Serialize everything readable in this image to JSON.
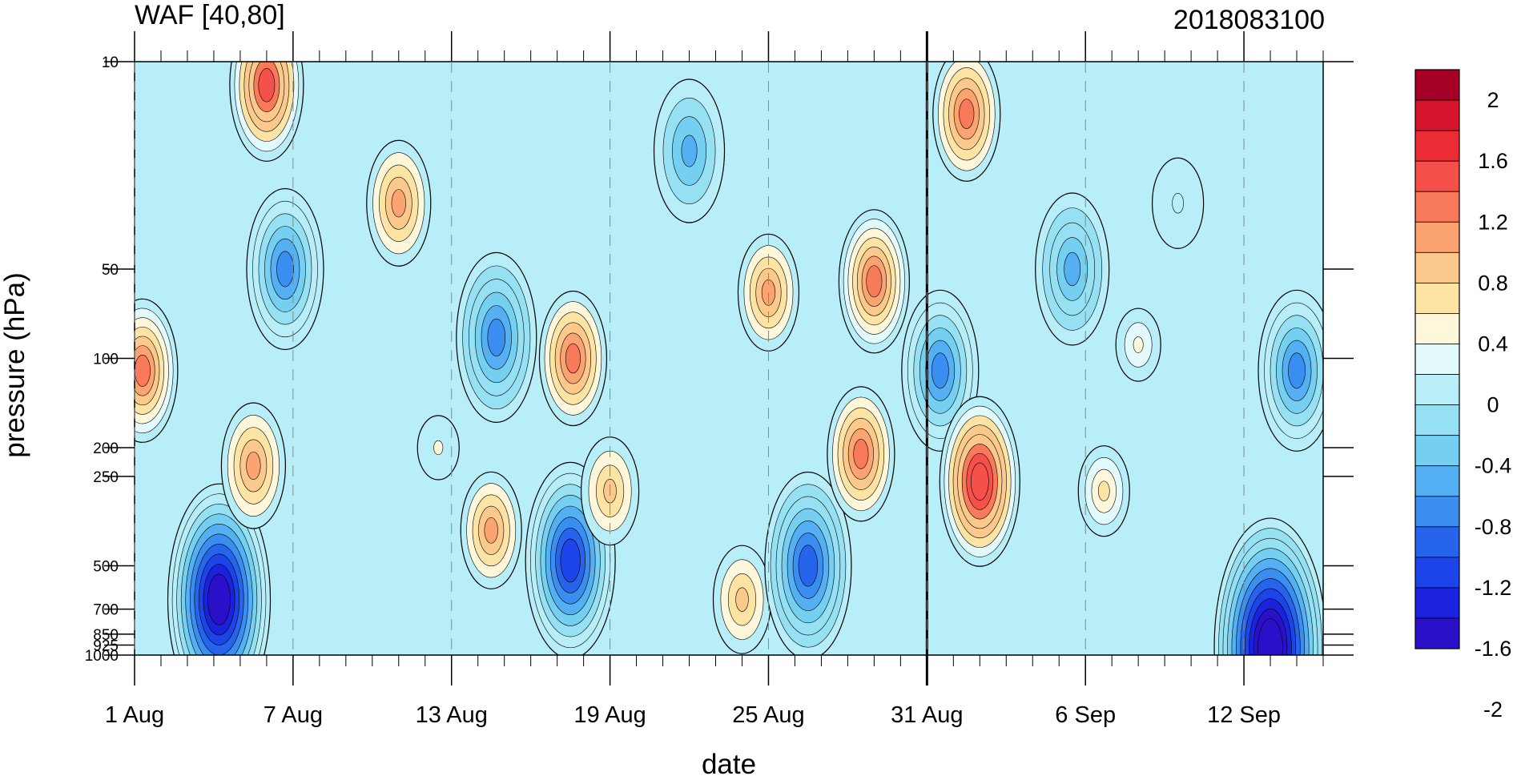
{
  "chart_data": {
    "type": "heatmap",
    "title": "WAF [40,80]",
    "title_right": "2018083100",
    "xlabel": "date",
    "ylabel": "pressure (hPa)",
    "x_tick_labels": [
      "1 Aug",
      "7 Aug",
      "13 Aug",
      "19 Aug",
      "25 Aug",
      "31 Aug",
      "6 Sep",
      "12 Sep"
    ],
    "x_tick_days": [
      1,
      7,
      13,
      19,
      25,
      31,
      37,
      43
    ],
    "xlim": [
      1,
      46
    ],
    "y_scale": "log",
    "y_tick_labels": [
      "10",
      "50",
      "100",
      "200",
      "250",
      "500",
      "700",
      "850",
      "925",
      "1000"
    ],
    "y_tick_values": [
      10,
      50,
      100,
      200,
      250,
      500,
      700,
      850,
      925,
      1000
    ],
    "ylim": [
      1000,
      10
    ],
    "forecast_start_day": 31,
    "colorbar": {
      "labels": [
        "2",
        "1.6",
        "1.2",
        "0.8",
        "0.4",
        "0",
        "-0.4",
        "-0.8",
        "-1.2",
        "-1.6",
        "-2"
      ],
      "colors": [
        "#a50026",
        "#d6142c",
        "#ec2c35",
        "#f6504a",
        "#f97a5a",
        "#fba472",
        "#fbc98c",
        "#fde3a4",
        "#fff7dc",
        "#e2fafc",
        "#b8eef8",
        "#96e0f4",
        "#74cff0",
        "#54b0f2",
        "#3a8ef0",
        "#2664ec",
        "#1c44e8",
        "#1a22dc",
        "#2a10c8"
      ]
    },
    "features": [
      {
        "day": 1.3,
        "p": 110,
        "v": 0.9
      },
      {
        "day": 6.0,
        "p": 12,
        "v": 1.0
      },
      {
        "day": 6.7,
        "p": 50,
        "v": -1.1
      },
      {
        "day": 4.2,
        "p": 650,
        "v": -1.9
      },
      {
        "day": 5.5,
        "p": 230,
        "v": 0.7
      },
      {
        "day": 11.0,
        "p": 30,
        "v": 0.7
      },
      {
        "day": 12.5,
        "p": 200,
        "v": 0.0
      },
      {
        "day": 14.7,
        "p": 85,
        "v": -1.2
      },
      {
        "day": 14.5,
        "p": 380,
        "v": 0.6
      },
      {
        "day": 17.6,
        "p": 100,
        "v": 0.8
      },
      {
        "day": 17.5,
        "p": 480,
        "v": -1.5
      },
      {
        "day": 19.0,
        "p": 280,
        "v": 0.5
      },
      {
        "day": 22.0,
        "p": 20,
        "v": -0.9
      },
      {
        "day": 25.0,
        "p": 60,
        "v": 0.6
      },
      {
        "day": 29.0,
        "p": 55,
        "v": 0.9
      },
      {
        "day": 24.0,
        "p": 650,
        "v": 0.5
      },
      {
        "day": 26.5,
        "p": 500,
        "v": -1.4
      },
      {
        "day": 28.5,
        "p": 210,
        "v": 0.8
      },
      {
        "day": 32.5,
        "p": 15,
        "v": 0.8
      },
      {
        "day": 31.5,
        "p": 110,
        "v": -1.1
      },
      {
        "day": 33.0,
        "p": 260,
        "v": 1.2
      },
      {
        "day": 36.5,
        "p": 50,
        "v": -1.0
      },
      {
        "day": 39.0,
        "p": 90,
        "v": 0.1
      },
      {
        "day": 37.7,
        "p": 280,
        "v": 0.3
      },
      {
        "day": 45.0,
        "p": 110,
        "v": -1.1
      },
      {
        "day": 44.0,
        "p": 940,
        "v": -2.2
      },
      {
        "day": 40.5,
        "p": 30,
        "v": -0.3
      }
    ]
  }
}
